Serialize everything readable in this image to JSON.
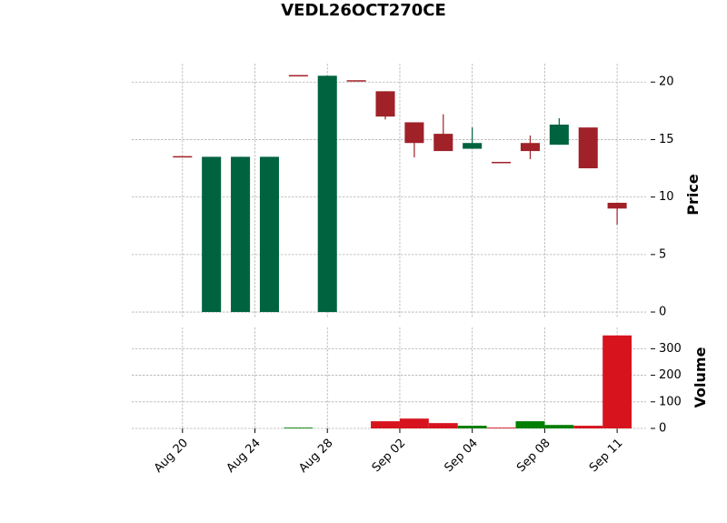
{
  "chart_data": {
    "type": "candlestick",
    "title": "VEDL26OCT270CE",
    "open": [
      13.5,
      0,
      0,
      0,
      20.55,
      0,
      20.1,
      19.2,
      16.5,
      15.5,
      14.2,
      13.0,
      14.7,
      14.55,
      16.05,
      9.5
    ],
    "high": [
      13.5,
      13.5,
      13.5,
      13.5,
      20.55,
      20.55,
      20.1,
      19.2,
      16.5,
      17.2,
      16.05,
      13.0,
      15.35,
      16.85,
      16.05,
      9.5
    ],
    "low": [
      13.5,
      0,
      0,
      0,
      20.55,
      0,
      20.1,
      16.75,
      13.45,
      14.0,
      14.2,
      13.0,
      13.3,
      14.55,
      12.5,
      7.6
    ],
    "close": [
      13.5,
      13.5,
      13.5,
      13.5,
      20.55,
      20.55,
      20.1,
      17.0,
      14.7,
      14.0,
      14.7,
      13.0,
      14.0,
      16.3,
      12.5,
      9.0
    ],
    "volume": [
      0,
      0,
      0,
      0,
      3,
      0,
      0,
      27,
      37,
      20,
      10,
      3,
      27,
      13,
      10,
      350
    ],
    "up_color": "#006340",
    "down_color": "#a02128",
    "volume_up_color": "#007f00",
    "volume_down_color": "#d7141e",
    "ylabel": "Price",
    "volume_label": "Volume",
    "ylim": [
      -0.55,
      21.6
    ],
    "yticks": [
      0,
      5,
      10,
      15,
      20
    ],
    "volume_ylim": [
      0,
      380
    ],
    "volume_yticks": [
      0,
      100,
      200,
      300
    ],
    "xlim": [
      -1.75,
      16
    ],
    "xticks": [
      {
        "value": 0,
        "label": "Aug 20"
      },
      {
        "value": 2.5,
        "label": "Aug 24"
      },
      {
        "value": 5,
        "label": "Aug 28"
      },
      {
        "value": 7.5,
        "label": "Sep 02"
      },
      {
        "value": 10,
        "label": "Sep 04"
      },
      {
        "value": 12.5,
        "label": "Sep 08"
      },
      {
        "value": 15,
        "label": "Sep 11"
      }
    ],
    "grid": true
  }
}
